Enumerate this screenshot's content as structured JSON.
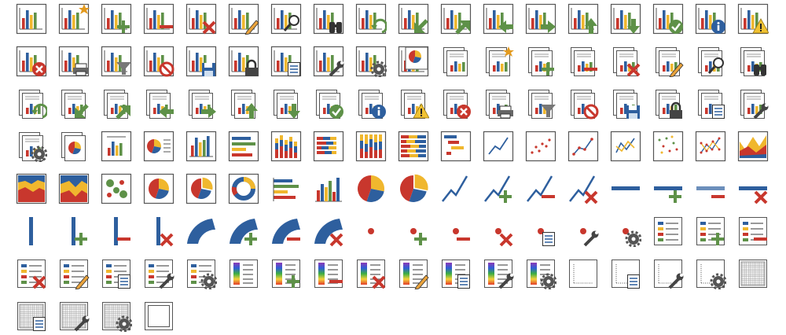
{
  "colors": {
    "red": "#c8372d",
    "blue": "#2e5f9e",
    "yellow": "#f0b72e",
    "green": "#5e9148",
    "gray": "#555555",
    "frame": "#555555"
  },
  "rows": [
    [
      "bar-chart",
      "bar-chart-star",
      "bar-chart-add",
      "bar-chart-remove",
      "bar-chart-delete",
      "bar-chart-edit",
      "bar-chart-search",
      "bar-chart-binoculars",
      "bar-chart-refresh",
      "bar-chart-arrow-down-left",
      "bar-chart-arrow-up-right",
      "bar-chart-arrow-left",
      "bar-chart-arrow-right",
      "bar-chart-arrow-up",
      "bar-chart-arrow-down",
      "bar-chart-ok",
      "bar-chart-info",
      "bar-chart-warning"
    ],
    [
      "bar-chart-error",
      "bar-chart-print",
      "bar-chart-filter",
      "bar-chart-forbidden",
      "bar-chart-save",
      "bar-chart-lock",
      "bar-chart-properties",
      "bar-chart-tools",
      "bar-chart-settings",
      "pie-chart-report",
      "chart-report",
      "chart-report-star",
      "chart-report-add",
      "chart-report-remove",
      "chart-report-delete",
      "chart-report-edit",
      "chart-report-search",
      "chart-report-binoculars"
    ],
    [
      "chart-report-refresh",
      "chart-report-arrow-down-left",
      "chart-report-arrow-up-right",
      "chart-report-arrow-left",
      "chart-report-arrow-right",
      "chart-report-arrow-up",
      "chart-report-arrow-down",
      "chart-report-ok",
      "chart-report-info",
      "chart-report-warning",
      "chart-report-error",
      "chart-report-print",
      "chart-report-filter",
      "chart-report-forbidden",
      "chart-report-save",
      "chart-report-lock",
      "chart-report-properties",
      "chart-report-tools"
    ],
    [
      "chart-report-settings",
      "pie-report",
      "bar-report",
      "pie-text-report",
      "column-chart",
      "bar-chart-horizontal",
      "stacked-column-chart",
      "stacked-bar-chart",
      "percent-stacked-column-chart",
      "percent-stacked-bar-chart",
      "gantt-chart",
      "line-chart",
      "scatter-chart",
      "line-markers-chart",
      "multi-line-chart",
      "multi-scatter-chart",
      "multi-line-markers-chart",
      "area-chart"
    ],
    [
      "stacked-area-chart",
      "percent-area-chart",
      "bubble-chart",
      "pie-chart",
      "exploded-pie-chart",
      "doughnut-chart",
      "horizontal-bars",
      "vertical-bars",
      "pie-plain",
      "pie-exploded-plain",
      "line-series",
      "line-series-add",
      "line-series-remove",
      "line-series-delete",
      "horizontal-axis",
      "horizontal-axis-add",
      "horizontal-axis-remove",
      "horizontal-axis-delete"
    ],
    [
      "vertical-axis",
      "vertical-axis-add",
      "vertical-axis-remove",
      "vertical-axis-delete",
      "gauge",
      "gauge-add",
      "gauge-remove",
      "gauge-delete",
      "data-point",
      "data-point-add",
      "data-point-remove",
      "data-point-delete",
      "data-point-properties",
      "data-point-tools",
      "data-point-settings",
      "legend",
      "legend-add",
      "legend-remove"
    ],
    [
      "legend-delete",
      "legend-edit",
      "legend-properties",
      "legend-tools",
      "legend-settings",
      "color-scale",
      "color-scale-add",
      "color-scale-remove",
      "color-scale-delete",
      "color-scale-edit",
      "color-scale-properties",
      "color-scale-tools",
      "color-scale-settings",
      "plot-area",
      "plot-area-properties",
      "plot-area-tools",
      "plot-area-settings",
      "gridlines"
    ],
    [
      "gridlines-properties",
      "gridlines-tools",
      "gridlines-settings",
      "chart-frame"
    ]
  ]
}
